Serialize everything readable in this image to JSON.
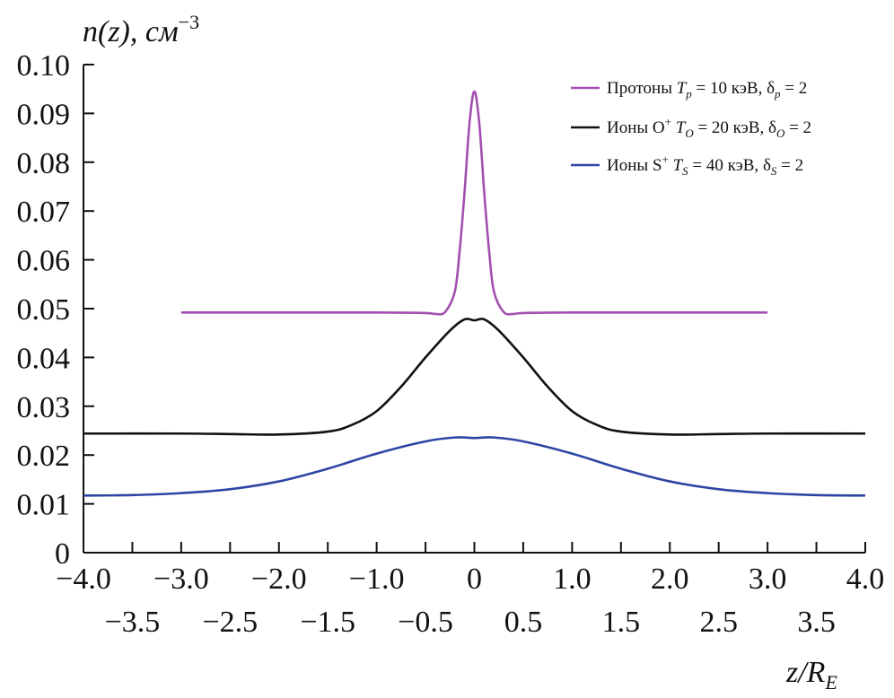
{
  "chart_data": {
    "type": "line",
    "ylabel": {
      "main": "n(z), см",
      "sup": "−3"
    },
    "xlabel": {
      "main": "z/R",
      "sub": "E"
    },
    "xlim": [
      -4.0,
      4.0
    ],
    "ylim": [
      0,
      0.1
    ],
    "x_ticks_row1": [
      "−4.0",
      "−3.0",
      "−2.0",
      "−1.0",
      "0",
      "1.0",
      "2.0",
      "3.0",
      "4.0"
    ],
    "x_ticks_row2": [
      "−3.5",
      "−2.5",
      "−1.5",
      "−0.5",
      "0.5",
      "1.5",
      "2.5",
      "3.5"
    ],
    "y_ticks": [
      "0",
      "0.01",
      "0.02",
      "0.03",
      "0.04",
      "0.05",
      "0.06",
      "0.07",
      "0.08",
      "0.09",
      "0.10"
    ],
    "legend_position": "top-right",
    "series": [
      {
        "name": "Протоны T_p = 10 кэВ, δ_p = 2",
        "legend": {
          "prefix": "Протоны ",
          "T": "T",
          "Tsub": "p",
          "mid": " = 10 кэВ, ",
          "d": "δ",
          "dsub": "p",
          "tail": " = 2"
        },
        "color": "#a24fb0",
        "x": [
          -3.0,
          -2.0,
          -1.0,
          -0.5,
          -0.4,
          -0.3,
          -0.2,
          -0.15,
          -0.1,
          -0.05,
          0.0,
          0.05,
          0.1,
          0.15,
          0.2,
          0.3,
          0.4,
          0.5,
          1.0,
          2.0,
          3.0
        ],
        "y": [
          0.0492,
          0.0492,
          0.0492,
          0.0491,
          0.0489,
          0.0493,
          0.0535,
          0.062,
          0.074,
          0.088,
          0.0945,
          0.088,
          0.074,
          0.062,
          0.0535,
          0.0493,
          0.0489,
          0.0491,
          0.0492,
          0.0492,
          0.0492
        ]
      },
      {
        "name": "Ионы O⁺ T_O = 20 кэВ, δ_O = 2",
        "legend": {
          "prefix": "Ионы O",
          "sup": "+",
          "space": " ",
          "T": "T",
          "Tsub": "O",
          "mid": " = 20 кэВ, ",
          "d": "δ",
          "dsub": "O",
          "tail": " = 2"
        },
        "color": "#111111",
        "x": [
          -4.0,
          -3.0,
          -2.5,
          -2.0,
          -1.5,
          -1.25,
          -1.0,
          -0.75,
          -0.5,
          -0.25,
          -0.1,
          0.0,
          0.1,
          0.25,
          0.5,
          0.75,
          1.0,
          1.25,
          1.5,
          2.0,
          2.5,
          3.0,
          4.0
        ],
        "y": [
          0.0244,
          0.0244,
          0.0243,
          0.0242,
          0.0248,
          0.0262,
          0.029,
          0.034,
          0.04,
          0.0455,
          0.0478,
          0.0476,
          0.0478,
          0.0455,
          0.04,
          0.034,
          0.029,
          0.0262,
          0.0248,
          0.0242,
          0.0243,
          0.0244,
          0.0244
        ]
      },
      {
        "name": "Ионы S⁺ T_S = 40 кэВ, δ_S = 2",
        "legend": {
          "prefix": "Ионы S",
          "sup": "+",
          "space": " ",
          "T": "T",
          "Tsub": "S",
          "mid": " = 40 кэВ, ",
          "d": "δ",
          "dsub": "S",
          "tail": " = 2"
        },
        "color": "#2d46a3",
        "x": [
          -4.0,
          -3.5,
          -3.0,
          -2.5,
          -2.0,
          -1.5,
          -1.0,
          -0.5,
          -0.2,
          0.0,
          0.2,
          0.5,
          1.0,
          1.5,
          2.0,
          2.5,
          3.0,
          3.5,
          4.0
        ],
        "y": [
          0.0117,
          0.0118,
          0.0122,
          0.013,
          0.0146,
          0.0172,
          0.0203,
          0.0228,
          0.0236,
          0.0235,
          0.0236,
          0.0228,
          0.0203,
          0.0172,
          0.0146,
          0.013,
          0.0122,
          0.0118,
          0.0117
        ]
      }
    ]
  }
}
